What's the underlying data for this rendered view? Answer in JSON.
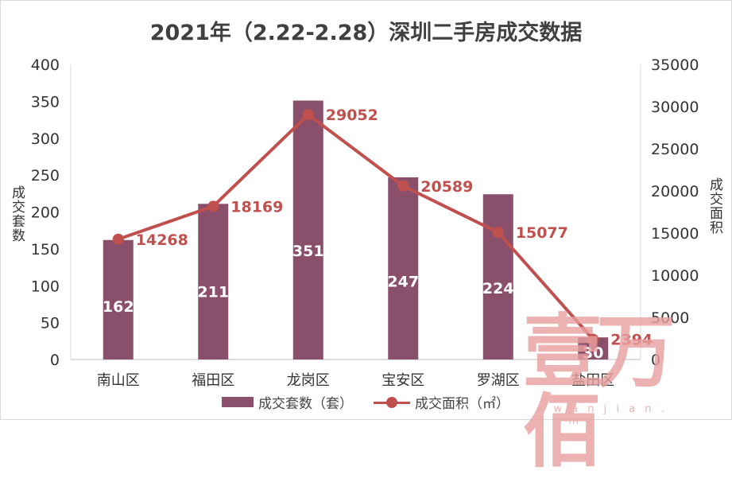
{
  "chart_data": {
    "type": "bar",
    "title": "2021年（2.22-2.28）深圳二手房成交数据",
    "categories": [
      "南山区",
      "福田区",
      "龙岗区",
      "宝安区",
      "罗湖区",
      "盐田区"
    ],
    "series": [
      {
        "name": "成交套数（套）",
        "type": "bar",
        "axis": "left",
        "values": [
          162,
          211,
          351,
          247,
          224,
          30
        ]
      },
      {
        "name": "成交面积（㎡）",
        "type": "line",
        "axis": "right",
        "values": [
          14268,
          18169,
          29052,
          20589,
          15077,
          2394
        ]
      }
    ],
    "ylabel_left": "成交套数",
    "ylabel_right": "成交面积",
    "ylim_left": [
      0,
      400
    ],
    "yticks_left": [
      "0",
      "50",
      "100",
      "150",
      "200",
      "250",
      "300",
      "350",
      "400"
    ],
    "ylim_right": [
      0,
      35000
    ],
    "yticks_right": [
      "0",
      "5000",
      "10000",
      "15000",
      "20000",
      "25000",
      "30000",
      "35000"
    ],
    "grid": false,
    "legend_position": "bottom",
    "colors": {
      "bar": "#8a4f6a",
      "line": "#c0504d",
      "bar_label": "#ffffff",
      "line_label": "#c0504d"
    }
  },
  "watermark": {
    "logo_text": "壹万佰",
    "url_text": "1 w a n j i a n . c o m"
  }
}
